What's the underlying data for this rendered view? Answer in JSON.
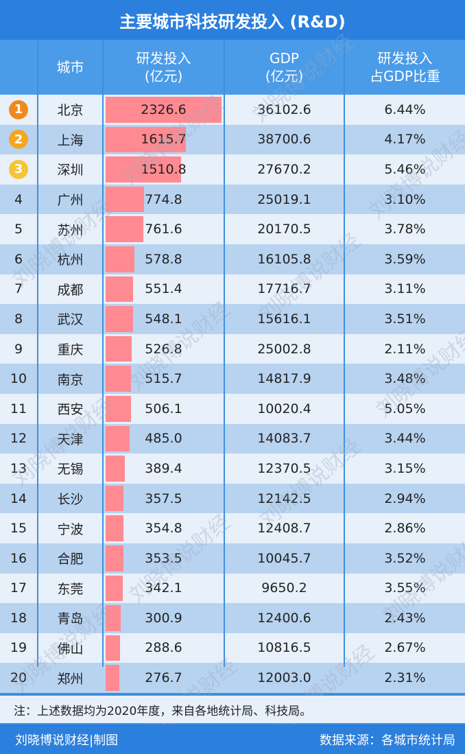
{
  "title": "主要城市科技研发投入 (R&D)",
  "headers": {
    "city": "城市",
    "rd": [
      "研发投入",
      "(亿元)"
    ],
    "gdp": [
      "GDP",
      "(亿元)"
    ],
    "ratio": [
      "研发投入",
      "占GDP比重"
    ]
  },
  "medal_colors": [
    "#f08a1e",
    "#f5a623",
    "#f7c435"
  ],
  "chart_data": {
    "type": "table",
    "rows": [
      {
        "rank": "1",
        "city": "北京",
        "rd": "2326.6",
        "gdp": "36102.6",
        "ratio": "6.44%"
      },
      {
        "rank": "2",
        "city": "上海",
        "rd": "1615.7",
        "gdp": "38700.6",
        "ratio": "4.17%"
      },
      {
        "rank": "3",
        "city": "深圳",
        "rd": "1510.8",
        "gdp": "27670.2",
        "ratio": "5.46%"
      },
      {
        "rank": "4",
        "city": "广州",
        "rd": "774.8",
        "gdp": "25019.1",
        "ratio": "3.10%"
      },
      {
        "rank": "5",
        "city": "苏州",
        "rd": "761.6",
        "gdp": "20170.5",
        "ratio": "3.78%"
      },
      {
        "rank": "6",
        "city": "杭州",
        "rd": "578.8",
        "gdp": "16105.8",
        "ratio": "3.59%"
      },
      {
        "rank": "7",
        "city": "成都",
        "rd": "551.4",
        "gdp": "17716.7",
        "ratio": "3.11%"
      },
      {
        "rank": "8",
        "city": "武汉",
        "rd": "548.1",
        "gdp": "15616.1",
        "ratio": "3.51%"
      },
      {
        "rank": "9",
        "city": "重庆",
        "rd": "526.8",
        "gdp": "25002.8",
        "ratio": "2.11%"
      },
      {
        "rank": "10",
        "city": "南京",
        "rd": "515.7",
        "gdp": "14817.9",
        "ratio": "3.48%"
      },
      {
        "rank": "11",
        "city": "西安",
        "rd": "506.1",
        "gdp": "10020.4",
        "ratio": "5.05%"
      },
      {
        "rank": "12",
        "city": "天津",
        "rd": "485.0",
        "gdp": "14083.7",
        "ratio": "3.44%"
      },
      {
        "rank": "13",
        "city": "无锡",
        "rd": "389.4",
        "gdp": "12370.5",
        "ratio": "3.15%"
      },
      {
        "rank": "14",
        "city": "长沙",
        "rd": "357.5",
        "gdp": "12142.5",
        "ratio": "2.94%"
      },
      {
        "rank": "15",
        "city": "宁波",
        "rd": "354.8",
        "gdp": "12408.7",
        "ratio": "2.86%"
      },
      {
        "rank": "16",
        "city": "合肥",
        "rd": "353.5",
        "gdp": "10045.7",
        "ratio": "3.52%"
      },
      {
        "rank": "17",
        "city": "东莞",
        "rd": "342.1",
        "gdp": "9650.2",
        "ratio": "3.55%"
      },
      {
        "rank": "18",
        "city": "青岛",
        "rd": "300.9",
        "gdp": "12400.6",
        "ratio": "2.43%"
      },
      {
        "rank": "19",
        "city": "佛山",
        "rd": "288.6",
        "gdp": "10816.5",
        "ratio": "2.67%"
      },
      {
        "rank": "20",
        "city": "郑州",
        "rd": "276.7",
        "gdp": "12003.0",
        "ratio": "2.31%"
      }
    ],
    "bar_max": 2326.6
  },
  "note": "注：上述数据均为2020年度，来自各地统计局、科技局。",
  "footer": {
    "left": "刘晓博说财经|制图",
    "right": "数据来源：各城市统计局"
  },
  "watermark": "刘晓博说财经"
}
